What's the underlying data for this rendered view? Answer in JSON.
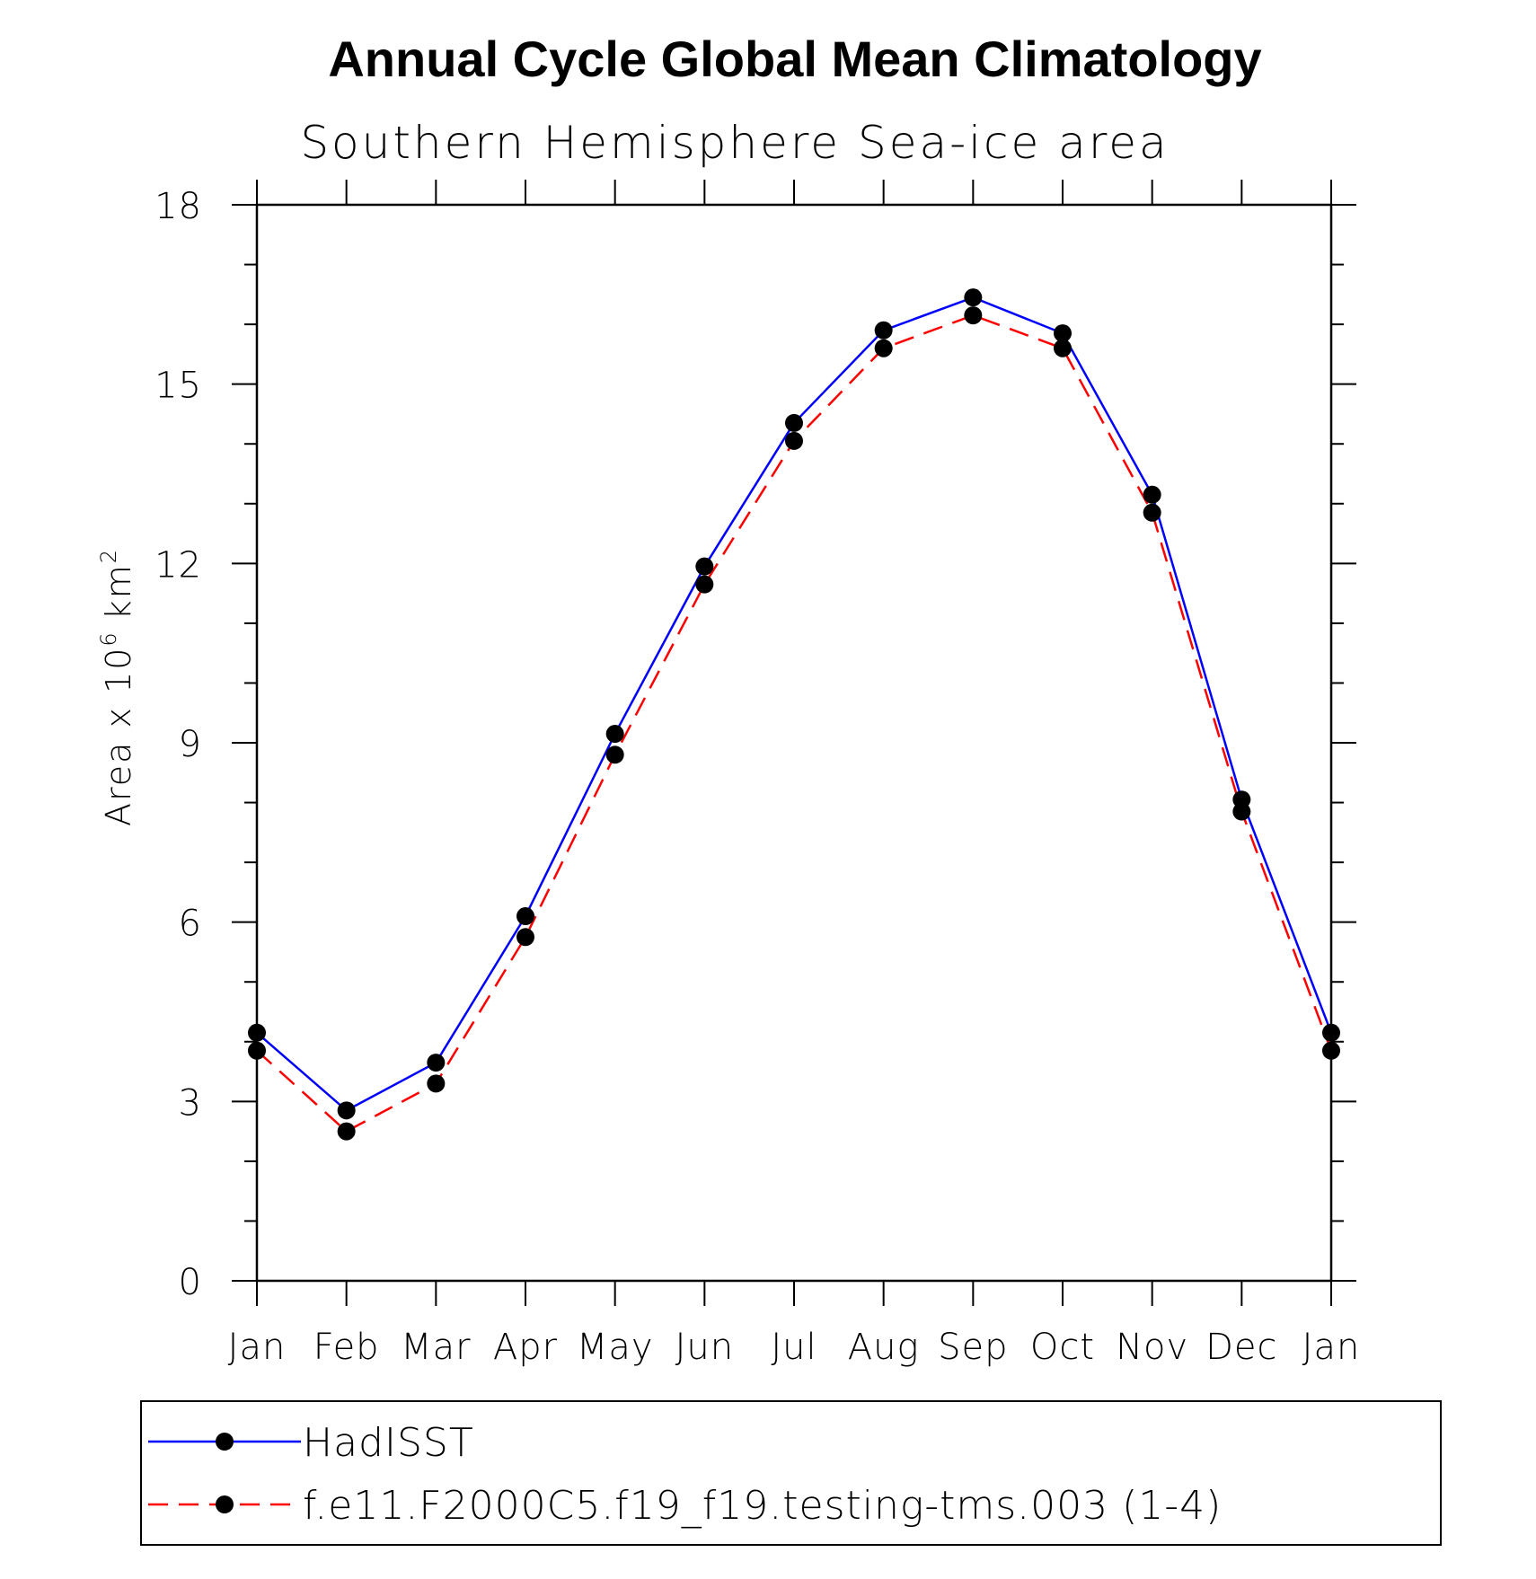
{
  "chart_data": {
    "type": "line",
    "title": "Annual Cycle Global Mean Climatology",
    "subtitle": "Southern Hemisphere Sea-ice area",
    "ylabel": "Area x 10",
    "ylabel_sup": "6",
    "ylabel_unit": "km",
    "ylabel_unit_sup": "2",
    "ylim": [
      0,
      18
    ],
    "yticks": [
      0,
      3,
      6,
      9,
      12,
      15,
      18
    ],
    "categories": [
      "Jan",
      "Feb",
      "Mar",
      "Apr",
      "May",
      "Jun",
      "Jul",
      "Aug",
      "Sep",
      "Oct",
      "Nov",
      "Dec",
      "Jan"
    ],
    "grid": false,
    "legend_position": "bottom",
    "series": [
      {
        "name": "HadISST",
        "color": "#0000ff",
        "style": "solid",
        "marker": "filled-circle",
        "values": [
          4.15,
          2.85,
          3.65,
          6.1,
          9.15,
          11.95,
          14.35,
          15.9,
          16.45,
          15.85,
          13.15,
          8.05,
          4.15
        ]
      },
      {
        "name": "f.e11.F2000C5.f19_f19.testing-tms.003 (1-4)",
        "color": "#ff0000",
        "style": "dashed",
        "marker": "filled-circle",
        "values": [
          3.85,
          2.5,
          3.3,
          5.75,
          8.8,
          11.65,
          14.05,
          15.6,
          16.15,
          15.6,
          12.85,
          7.85,
          3.85
        ]
      }
    ]
  }
}
